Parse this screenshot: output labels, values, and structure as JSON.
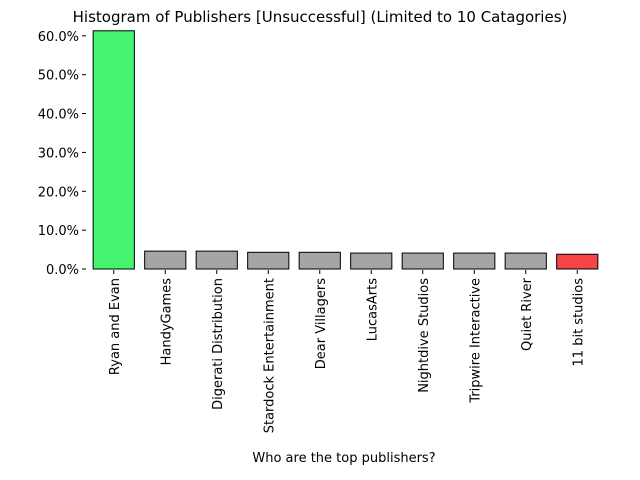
{
  "chart_data": {
    "type": "bar",
    "title": "Histogram of Publishers [Unsuccessful] (Limited to 10 Catagories)",
    "xlabel": "Who are the top publishers?",
    "ylabel": "",
    "ylim": [
      0,
      61.5
    ],
    "y_ticks": [
      0,
      10,
      20,
      30,
      40,
      50,
      60
    ],
    "y_tick_labels": [
      "0.0%",
      "10.0%",
      "20.0%",
      "30.0%",
      "40.0%",
      "50.0%",
      "60.0%"
    ],
    "categories": [
      "Ryan and Evan",
      "HandyGames",
      "Digerati Distribution",
      "Stardock Entertainment",
      "Dear Villagers",
      "LucasArts",
      "Nightdive Studios",
      "Tripwire Interactive",
      "Quiet River",
      "11 bit studios"
    ],
    "values": [
      61.3,
      4.6,
      4.6,
      4.3,
      4.3,
      4.1,
      4.1,
      4.1,
      4.1,
      3.8
    ],
    "bar_colors": [
      "#44f46f",
      "#a5a5a5",
      "#a5a5a5",
      "#a5a5a5",
      "#a5a5a5",
      "#a5a5a5",
      "#a5a5a5",
      "#a5a5a5",
      "#a5a5a5",
      "#f44444"
    ],
    "edge_color": "#000000",
    "grid": false,
    "legend": "none"
  }
}
